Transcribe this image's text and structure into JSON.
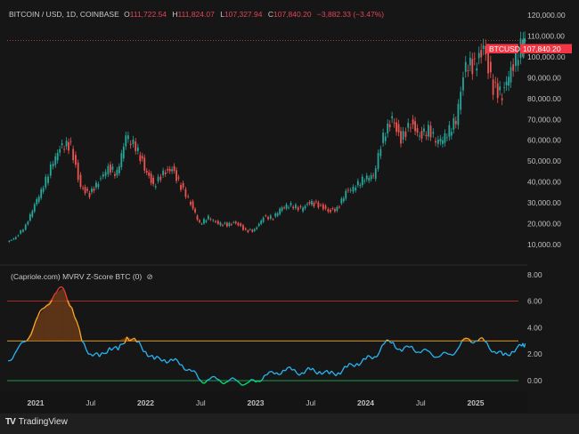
{
  "header": {
    "symbol": "BITCOIN / USD, 1D, COINBASE",
    "open_label": "O",
    "open": "111,722.54",
    "high_label": "H",
    "high": "111,824.07",
    "low_label": "L",
    "low": "107,327.94",
    "close_label": "C",
    "close": "107,840.20",
    "change": "−3,882.33 (−3.47%)"
  },
  "price_tag": {
    "symbol": "BTCUSD",
    "value": "107,840.20"
  },
  "price_axis": [
    "120,000.00",
    "110,000.00",
    "100,000.00",
    "90,000.00",
    "80,000.00",
    "70,000.00",
    "60,000.00",
    "50,000.00",
    "40,000.00",
    "30,000.00",
    "20,000.00",
    "10,000.00"
  ],
  "indicator": {
    "title": "(Capriole.com) MVRV Z-Score BTC (0)",
    "icon": "eye-off-icon",
    "axis": [
      "8.00",
      "6.00",
      "4.00",
      "2.00",
      "0.00"
    ]
  },
  "time_axis": [
    {
      "label": "2021",
      "t": 2021.0,
      "bold": true
    },
    {
      "label": "Jul",
      "t": 2021.5
    },
    {
      "label": "2022",
      "t": 2022.0,
      "bold": true
    },
    {
      "label": "Jul",
      "t": 2022.5
    },
    {
      "label": "2023",
      "t": 2023.0,
      "bold": true
    },
    {
      "label": "Jul",
      "t": 2023.5
    },
    {
      "label": "2024",
      "t": 2024.0,
      "bold": true
    },
    {
      "label": "Jul",
      "t": 2024.5
    },
    {
      "label": "2025",
      "t": 2025.0,
      "bold": true
    }
  ],
  "footer": {
    "brand": "TradingView"
  },
  "colors": {
    "up": "#26a69a",
    "down": "#ef5350",
    "z_normal": "#29b6f6",
    "z_high": "#ffa726",
    "z_extreme": "#e53935",
    "z_low": "#00e676",
    "line6": "#d32f2f",
    "line3": "#f5a623",
    "line0": "#22c55e"
  },
  "chart_data": [
    {
      "type": "line",
      "title": "BITCOIN / USD, 1D, COINBASE",
      "ylim": [
        10000,
        120000
      ],
      "x": [
        2020.75,
        2020.83,
        2020.92,
        2021.0,
        2021.08,
        2021.17,
        2021.25,
        2021.33,
        2021.42,
        2021.5,
        2021.58,
        2021.67,
        2021.75,
        2021.83,
        2021.92,
        2022.0,
        2022.08,
        2022.17,
        2022.25,
        2022.33,
        2022.42,
        2022.5,
        2022.58,
        2022.67,
        2022.75,
        2022.83,
        2022.92,
        2023.0,
        2023.08,
        2023.17,
        2023.25,
        2023.33,
        2023.42,
        2023.5,
        2023.58,
        2023.67,
        2023.75,
        2023.83,
        2023.92,
        2024.0,
        2024.08,
        2024.17,
        2024.25,
        2024.33,
        2024.42,
        2024.5,
        2024.58,
        2024.67,
        2024.75,
        2024.83,
        2024.92,
        2025.0,
        2025.08,
        2025.17,
        2025.25,
        2025.33,
        2025.42,
        2025.45
      ],
      "values": [
        11000,
        13500,
        19000,
        29000,
        38000,
        50000,
        58000,
        57000,
        37000,
        34000,
        40000,
        47000,
        44000,
        62000,
        57000,
        47000,
        38000,
        44000,
        46000,
        38000,
        30000,
        20000,
        23000,
        20000,
        19500,
        20500,
        16500,
        16800,
        23000,
        23000,
        28000,
        29000,
        27000,
        30000,
        29000,
        26000,
        27000,
        35000,
        38000,
        42000,
        43000,
        62000,
        70000,
        60000,
        68000,
        62000,
        65000,
        59000,
        63000,
        70000,
        97000,
        95000,
        104000,
        85000,
        82000,
        94000,
        105000,
        107840
      ]
    },
    {
      "type": "line",
      "title": "(Capriole.com) MVRV Z-Score BTC (0)",
      "ylim": [
        -0.5,
        8.5
      ],
      "thresholds": [
        6,
        3,
        0
      ],
      "x": [
        2020.75,
        2020.83,
        2020.92,
        2021.0,
        2021.08,
        2021.17,
        2021.25,
        2021.33,
        2021.42,
        2021.5,
        2021.58,
        2021.67,
        2021.75,
        2021.83,
        2021.92,
        2022.0,
        2022.08,
        2022.17,
        2022.25,
        2022.33,
        2022.42,
        2022.5,
        2022.58,
        2022.67,
        2022.75,
        2022.83,
        2022.92,
        2023.0,
        2023.08,
        2023.17,
        2023.25,
        2023.33,
        2023.42,
        2023.5,
        2023.58,
        2023.67,
        2023.75,
        2023.83,
        2023.92,
        2024.0,
        2024.08,
        2024.17,
        2024.25,
        2024.33,
        2024.42,
        2024.5,
        2024.58,
        2024.67,
        2024.75,
        2024.83,
        2024.92,
        2025.0,
        2025.08,
        2025.17,
        2025.25,
        2025.33,
        2025.42,
        2025.45
      ],
      "values": [
        1.5,
        2.3,
        3.0,
        4.5,
        5.5,
        6.5,
        7.0,
        5.5,
        3.0,
        2.0,
        1.8,
        2.5,
        2.3,
        3.3,
        2.9,
        2.2,
        1.6,
        1.6,
        1.5,
        1.2,
        0.7,
        0.0,
        0.1,
        0.05,
        -0.05,
        0.0,
        -0.2,
        -0.1,
        0.4,
        0.5,
        0.8,
        0.8,
        0.6,
        0.8,
        0.7,
        0.5,
        0.6,
        1.0,
        1.3,
        1.6,
        1.8,
        2.8,
        2.9,
        2.2,
        2.6,
        2.1,
        2.2,
        1.8,
        2.0,
        2.3,
        3.2,
        3.0,
        3.0,
        2.2,
        1.9,
        2.2,
        2.6,
        2.8
      ]
    }
  ]
}
